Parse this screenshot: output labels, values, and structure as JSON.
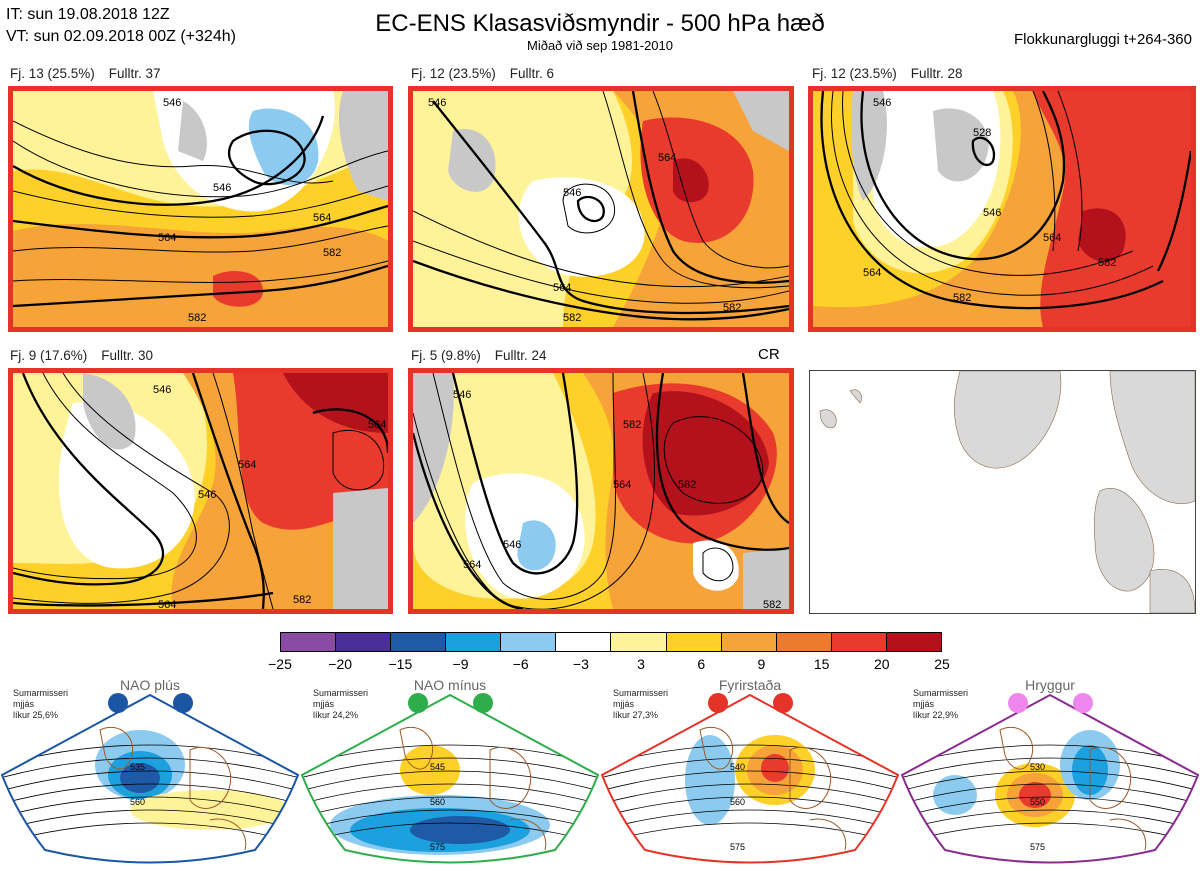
{
  "header": {
    "it": "IT: sun 19.08.2018 12Z",
    "vt": "VT: sun 02.09.2018 00Z  (+324h)",
    "title": "EC-ENS Klasasviðsmyndir - 500 hPa hæð",
    "subtitle": "Miðað við sep 1981-2010",
    "window": "Flokkunargluggi t+264-360"
  },
  "clusters": [
    {
      "fj": "Fj. 13 (25.5%)",
      "fulltr": "Fulltr. 37",
      "contours": [
        "546",
        "546",
        "564",
        "564",
        "582",
        "582"
      ]
    },
    {
      "fj": "Fj. 12 (23.5%)",
      "fulltr": "Fulltr. 6",
      "contours": [
        "546",
        "546",
        "564",
        "564",
        "582",
        "582"
      ]
    },
    {
      "fj": "Fj. 12 (23.5%)",
      "fulltr": "Fulltr. 28",
      "contours": [
        "546",
        "528",
        "546",
        "564",
        "564",
        "582",
        "582"
      ]
    },
    {
      "fj": "Fj. 9 (17.6%)",
      "fulltr": "Fulltr. 30",
      "contours": [
        "546",
        "546",
        "564",
        "564",
        "582",
        "564"
      ]
    },
    {
      "fj": "Fj. 5 (9.8%)",
      "fulltr": "Fulltr. 24",
      "cr": "CR",
      "contours": [
        "546",
        "546",
        "564",
        "564",
        "582",
        "582",
        "582"
      ]
    }
  ],
  "colorbar": {
    "labels": [
      "−25",
      "−20",
      "−15",
      "−9",
      "−6",
      "−3",
      "3",
      "6",
      "9",
      "15",
      "20",
      "25"
    ],
    "colors": [
      "#8b4aa3",
      "#4a2e99",
      "#1f5aa6",
      "#1da0de",
      "#8ccbef",
      "#ffffff",
      "#fff39a",
      "#fdd12a",
      "#f6a33a",
      "#ee7a2e",
      "#e83b2d",
      "#b3121d"
    ]
  },
  "patterns": [
    {
      "title": "NAO plús",
      "note": [
        "Sumarmisseri",
        "mjjás",
        "líkur 25,6%"
      ],
      "color": "#1a56a4",
      "dot": "#1a56a4",
      "labels": [
        "535",
        "560"
      ]
    },
    {
      "title": "NAO mínus",
      "note": [
        "Sumarmisseri",
        "mjjás",
        "líkur 24,2%"
      ],
      "color": "#2ead4b",
      "dot": "#2ead4b",
      "labels": [
        "545",
        "560",
        "575"
      ]
    },
    {
      "title": "Fyrirstaða",
      "note": [
        "Sumarmisseri",
        "mjjás",
        "líkur 27,3%"
      ],
      "color": "#e53327",
      "dot": "#e53327",
      "labels": [
        "540",
        "560",
        "575"
      ]
    },
    {
      "title": "Hryggur",
      "note": [
        "Sumarmisseri",
        "mjjás",
        "líkur 22,9%"
      ],
      "color": "#8a2b8f",
      "dot": "#ee86ee",
      "labels": [
        "530",
        "550",
        "575"
      ]
    }
  ]
}
